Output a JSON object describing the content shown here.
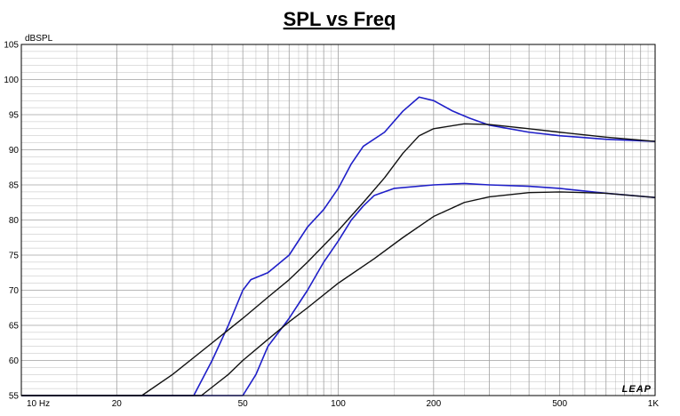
{
  "chart_data": {
    "type": "line",
    "title": "SPL vs Freq",
    "ylabel": "dBSPL",
    "xlabel": "",
    "xscale": "log",
    "xlim": [
      10,
      1000
    ],
    "ylim": [
      55,
      105
    ],
    "yticks": [
      "55",
      "60",
      "65",
      "70",
      "75",
      "80",
      "85",
      "90",
      "95",
      "100",
      "105"
    ],
    "xticks": [
      {
        "v": 10,
        "label": "10 Hz"
      },
      {
        "v": 20,
        "label": "20"
      },
      {
        "v": 50,
        "label": "50"
      },
      {
        "v": 100,
        "label": "100"
      },
      {
        "v": 200,
        "label": "200"
      },
      {
        "v": 500,
        "label": "500"
      },
      {
        "v": 1000,
        "label": "1K"
      }
    ],
    "grid": true,
    "watermark": "LEAP",
    "colors": {
      "measured": "#1f1fc8",
      "modeled": "#111111",
      "grid": "#a0a0a0",
      "axis": "#000000"
    },
    "series": [
      {
        "style": "measured",
        "points": [
          [
            10,
            55
          ],
          [
            35,
            55
          ],
          [
            40,
            60
          ],
          [
            45,
            65
          ],
          [
            50,
            70
          ],
          [
            53,
            71.5
          ],
          [
            60,
            72.5
          ],
          [
            70,
            75
          ],
          [
            80,
            79
          ],
          [
            90,
            81.5
          ],
          [
            100,
            84.5
          ],
          [
            110,
            88
          ],
          [
            120,
            90.5
          ],
          [
            140,
            92.5
          ],
          [
            160,
            95.5
          ],
          [
            180,
            97.5
          ],
          [
            200,
            97
          ],
          [
            230,
            95.5
          ],
          [
            260,
            94.5
          ],
          [
            300,
            93.5
          ],
          [
            400,
            92.5
          ],
          [
            500,
            92
          ],
          [
            700,
            91.5
          ],
          [
            1000,
            91.2
          ]
        ]
      },
      {
        "style": "modeled",
        "points": [
          [
            10,
            55
          ],
          [
            24,
            55
          ],
          [
            30,
            58
          ],
          [
            40,
            62.5
          ],
          [
            50,
            66
          ],
          [
            60,
            69
          ],
          [
            70,
            71.5
          ],
          [
            80,
            74
          ],
          [
            100,
            78.5
          ],
          [
            120,
            82.5
          ],
          [
            140,
            86
          ],
          [
            160,
            89.5
          ],
          [
            180,
            92
          ],
          [
            200,
            93
          ],
          [
            250,
            93.7
          ],
          [
            300,
            93.6
          ],
          [
            400,
            93
          ],
          [
            500,
            92.5
          ],
          [
            700,
            91.8
          ],
          [
            1000,
            91.2
          ]
        ]
      },
      {
        "style": "measured",
        "points": [
          [
            10,
            55
          ],
          [
            50,
            55
          ],
          [
            55,
            58
          ],
          [
            60,
            62
          ],
          [
            70,
            66
          ],
          [
            80,
            70
          ],
          [
            90,
            74
          ],
          [
            100,
            77
          ],
          [
            110,
            80
          ],
          [
            120,
            82
          ],
          [
            130,
            83.5
          ],
          [
            150,
            84.5
          ],
          [
            200,
            85
          ],
          [
            250,
            85.2
          ],
          [
            300,
            85
          ],
          [
            400,
            84.8
          ],
          [
            500,
            84.5
          ],
          [
            700,
            83.8
          ],
          [
            1000,
            83.2
          ]
        ]
      },
      {
        "style": "modeled",
        "points": [
          [
            10,
            55
          ],
          [
            37,
            55
          ],
          [
            45,
            58
          ],
          [
            50,
            60
          ],
          [
            60,
            63
          ],
          [
            70,
            65.5
          ],
          [
            80,
            67.5
          ],
          [
            100,
            71
          ],
          [
            130,
            74.5
          ],
          [
            160,
            77.5
          ],
          [
            200,
            80.5
          ],
          [
            250,
            82.5
          ],
          [
            300,
            83.3
          ],
          [
            400,
            83.9
          ],
          [
            500,
            84
          ],
          [
            700,
            83.8
          ],
          [
            1000,
            83.2
          ]
        ]
      }
    ]
  }
}
